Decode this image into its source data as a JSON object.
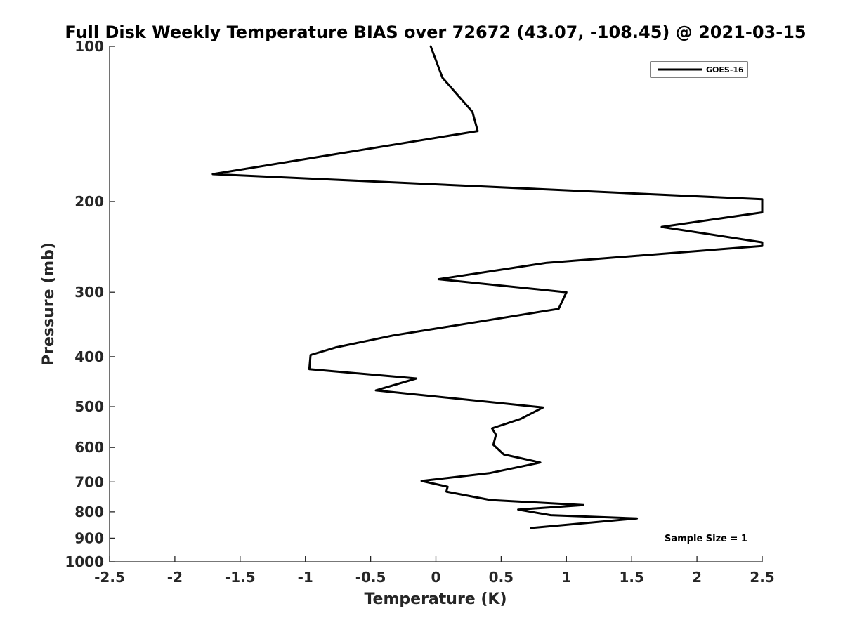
{
  "chart_data": {
    "type": "line",
    "title": "Full Disk Weekly Temperature BIAS over 72672 (43.07, -108.45) @ 2021-03-15",
    "xlabel": "Temperature (K)",
    "ylabel": "Pressure (mb)",
    "xlim": [
      -2.5,
      2.5
    ],
    "ylim": [
      100,
      1000
    ],
    "y_scale": "log",
    "y_reversed": true,
    "x_ticks": [
      -2.5,
      -2,
      -1.5,
      -1,
      -0.5,
      0,
      0.5,
      1,
      1.5,
      2,
      2.5
    ],
    "x_tick_labels": [
      "-2.5",
      "-2",
      "-1.5",
      "-1",
      "-0.5",
      "0",
      "0.5",
      "1",
      "1.5",
      "2",
      "2.5"
    ],
    "y_ticks": [
      100,
      200,
      300,
      400,
      500,
      600,
      700,
      800,
      900,
      1000
    ],
    "y_tick_labels": [
      "100",
      "200",
      "300",
      "400",
      "500",
      "600",
      "700",
      "800",
      "900",
      "1000"
    ],
    "grid": false,
    "legend_position": "top-right",
    "annotation": "Sample Size = 1",
    "line_color": "#000000",
    "series": [
      {
        "name": "GOES-16",
        "points": [
          [
            -0.04,
            100
          ],
          [
            0.05,
            115
          ],
          [
            0.28,
            134
          ],
          [
            0.32,
            146
          ],
          [
            -1.71,
            177
          ],
          [
            2.5,
            198
          ],
          [
            2.5,
            210
          ],
          [
            1.73,
            224
          ],
          [
            2.5,
            240
          ],
          [
            2.5,
            244
          ],
          [
            0.85,
            263
          ],
          [
            0.02,
            283
          ],
          [
            1.0,
            300
          ],
          [
            0.94,
            323
          ],
          [
            -0.33,
            364
          ],
          [
            -0.77,
            384
          ],
          [
            -0.96,
            397
          ],
          [
            -0.97,
            423
          ],
          [
            -0.15,
            441
          ],
          [
            -0.46,
            465
          ],
          [
            0.82,
            502
          ],
          [
            0.65,
            528
          ],
          [
            0.43,
            551
          ],
          [
            0.46,
            567
          ],
          [
            0.44,
            593
          ],
          [
            0.52,
            619
          ],
          [
            0.8,
            642
          ],
          [
            0.41,
            673
          ],
          [
            -0.11,
            697
          ],
          [
            0.09,
            715
          ],
          [
            0.08,
            731
          ],
          [
            0.42,
            759
          ],
          [
            1.13,
            776
          ],
          [
            0.63,
            792
          ],
          [
            0.88,
            812
          ],
          [
            1.54,
            824
          ],
          [
            0.73,
            860
          ]
        ]
      }
    ]
  }
}
